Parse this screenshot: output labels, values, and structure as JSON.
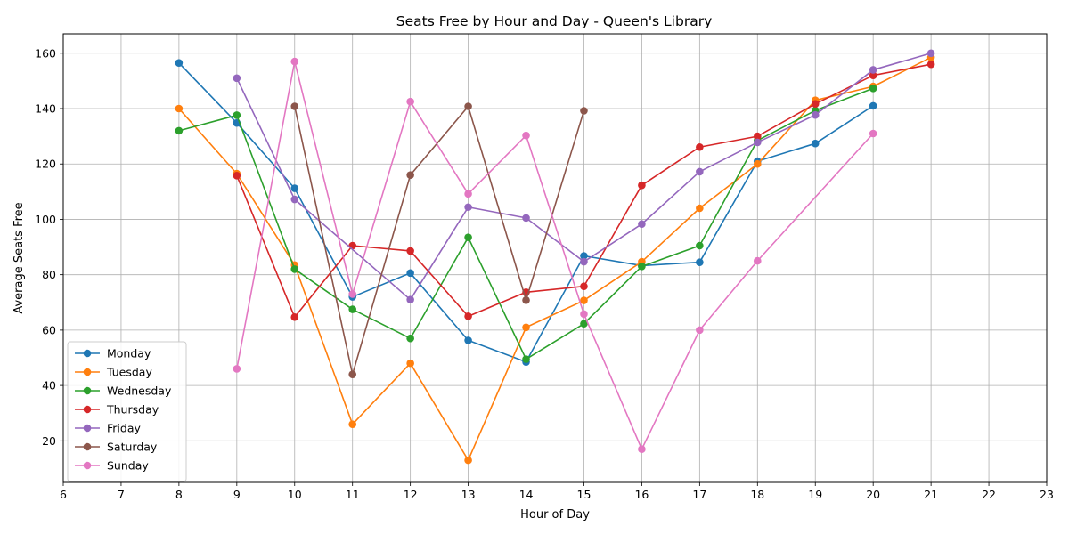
{
  "chart_data": {
    "type": "line",
    "title": "Seats Free by Hour and Day - Queen's Library",
    "xlabel": "Hour of Day",
    "ylabel": "Average Seats Free",
    "xlim": [
      6,
      23
    ],
    "ylim": [
      5,
      167
    ],
    "xticks": [
      6,
      7,
      8,
      9,
      10,
      11,
      12,
      13,
      14,
      15,
      16,
      17,
      18,
      19,
      20,
      21,
      22,
      23
    ],
    "yticks": [
      20,
      40,
      60,
      80,
      100,
      120,
      140,
      160
    ],
    "grid": true,
    "legend_position": "lower-left",
    "markers": "circle",
    "series": [
      {
        "name": "Monday",
        "color": "#1f77b4",
        "points": [
          [
            8,
            156.5
          ],
          [
            9,
            134.8
          ],
          [
            10,
            111.2
          ],
          [
            11,
            72
          ],
          [
            12,
            80.6
          ],
          [
            13,
            56.3
          ],
          [
            14,
            48.5
          ],
          [
            15,
            86.8
          ],
          [
            16,
            83.3
          ],
          [
            17,
            84.5
          ],
          [
            18,
            121
          ],
          [
            19,
            127.4
          ],
          [
            20,
            141
          ]
        ]
      },
      {
        "name": "Tuesday",
        "color": "#ff7f0e",
        "points": [
          [
            8,
            140
          ],
          [
            9,
            116.5
          ],
          [
            10,
            83.5
          ],
          [
            11,
            26
          ],
          [
            12,
            48
          ],
          [
            13,
            13
          ],
          [
            14,
            61
          ],
          [
            15,
            70.7
          ],
          [
            16,
            84.7
          ],
          [
            17,
            104
          ],
          [
            18,
            120
          ],
          [
            19,
            143
          ],
          [
            20,
            148
          ],
          [
            21,
            158.5
          ]
        ]
      },
      {
        "name": "Wednesday",
        "color": "#2ca02c",
        "points": [
          [
            8,
            132
          ],
          [
            9,
            137.6
          ],
          [
            10,
            82
          ],
          [
            11,
            67.5
          ],
          [
            12,
            57
          ],
          [
            13,
            93.5
          ],
          [
            14,
            49.5
          ],
          [
            15,
            62.3
          ],
          [
            16,
            83
          ],
          [
            17,
            90.5
          ],
          [
            18,
            128.5
          ],
          [
            19,
            139.3
          ],
          [
            20,
            147.3
          ]
        ]
      },
      {
        "name": "Thursday",
        "color": "#d62728",
        "points": [
          [
            9,
            115.8
          ],
          [
            10,
            64.7
          ],
          [
            11,
            90.5
          ],
          [
            12,
            88.6
          ],
          [
            13,
            65
          ],
          [
            14,
            73.7
          ],
          [
            15,
            75.8
          ],
          [
            16,
            112.3
          ],
          [
            17,
            126.1
          ],
          [
            18,
            130
          ],
          [
            19,
            141.7
          ],
          [
            20,
            152
          ],
          [
            21,
            156
          ]
        ]
      },
      {
        "name": "Friday",
        "color": "#9467bd",
        "points": [
          [
            9,
            151
          ],
          [
            10,
            107.2
          ],
          [
            12,
            71
          ],
          [
            13,
            104.4
          ],
          [
            14,
            100.5
          ],
          [
            15,
            84.7
          ],
          [
            16,
            98.3
          ],
          [
            17,
            117.2
          ],
          [
            18,
            127.8
          ],
          [
            19,
            137.7
          ],
          [
            20,
            154
          ],
          [
            21,
            160
          ]
        ]
      },
      {
        "name": "Saturday",
        "color": "#8c564b",
        "points": [
          [
            10,
            140.8
          ],
          [
            11,
            44
          ],
          [
            12,
            116
          ],
          [
            13,
            140.8
          ],
          [
            14,
            70.8
          ],
          [
            15,
            139.2
          ]
        ]
      },
      {
        "name": "Sunday",
        "color": "#e377c2",
        "points": [
          [
            9,
            46
          ],
          [
            10,
            157
          ],
          [
            11,
            73
          ],
          [
            12,
            142.5
          ],
          [
            13,
            109.2
          ],
          [
            14,
            130.3
          ],
          [
            15,
            65.8
          ],
          [
            16,
            17
          ],
          [
            17,
            60
          ],
          [
            18,
            85
          ],
          [
            20,
            131
          ]
        ]
      }
    ]
  }
}
